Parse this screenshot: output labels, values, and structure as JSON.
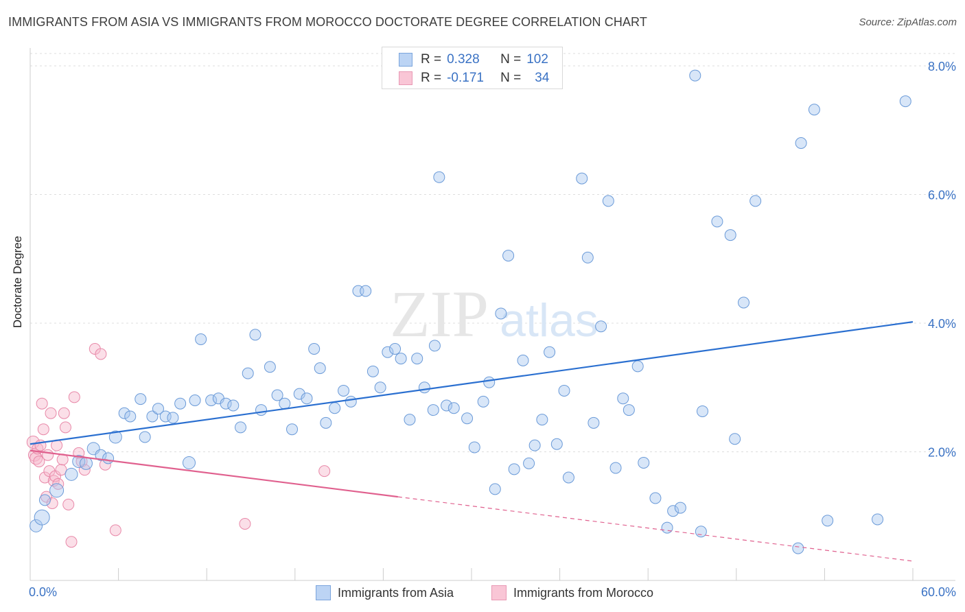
{
  "title": "IMMIGRANTS FROM ASIA VS IMMIGRANTS FROM MOROCCO DOCTORATE DEGREE CORRELATION CHART",
  "source": "Source: ZipAtlas.com",
  "watermark": {
    "zip": "ZIP",
    "atlas": "atlas"
  },
  "colors": {
    "asia_fill": "#a8c8f0",
    "asia_stroke": "#6a9ad8",
    "asia_line": "#2a6fd0",
    "morocco_fill": "#f6b8cc",
    "morocco_stroke": "#e888a8",
    "morocco_line": "#e0608e",
    "axis_label": "#3a72c4",
    "grid": "#dddddd"
  },
  "legend": {
    "asia": {
      "r_label": "R =",
      "r_value": "0.328",
      "n_label": "N =",
      "n_value": "102"
    },
    "morocco": {
      "r_label": "R =",
      "r_value": "-0.171",
      "n_label": "N =",
      "n_value": "34"
    }
  },
  "bottom_legend": {
    "asia": "Immigrants from Asia",
    "morocco": "Immigrants from Morocco"
  },
  "chart_data": {
    "type": "scatter",
    "title": "IMMIGRANTS FROM ASIA VS IMMIGRANTS FROM MOROCCO DOCTORATE DEGREE CORRELATION CHART",
    "xlabel": "",
    "ylabel": "Doctorate Degree",
    "xlim": [
      0,
      60
    ],
    "ylim": [
      0,
      8.3
    ],
    "x_tick_labels": [
      "0.0%",
      "60.0%"
    ],
    "y_ticks": [
      2,
      4,
      6,
      8
    ],
    "y_tick_labels": [
      "2.0%",
      "4.0%",
      "6.0%",
      "8.0%"
    ],
    "grid": "horizontal dashed",
    "legend_position": "top-center",
    "series": [
      {
        "name": "Immigrants from Asia",
        "regression": {
          "x": [
            0,
            60
          ],
          "y": [
            2.12,
            4.02
          ]
        },
        "points": [
          [
            0.4,
            0.85,
            9
          ],
          [
            0.8,
            0.98,
            11
          ],
          [
            1.0,
            1.25,
            8
          ],
          [
            1.8,
            1.4,
            10
          ],
          [
            2.8,
            1.65,
            9
          ],
          [
            3.3,
            1.85,
            9
          ],
          [
            3.8,
            1.82,
            9
          ],
          [
            4.3,
            2.05,
            9
          ],
          [
            4.8,
            1.95,
            8
          ],
          [
            5.3,
            1.9,
            8
          ],
          [
            5.8,
            2.23,
            9
          ],
          [
            6.4,
            2.6,
            8
          ],
          [
            6.8,
            2.55,
            8
          ],
          [
            7.5,
            2.82,
            8
          ],
          [
            7.8,
            2.23,
            8
          ],
          [
            8.3,
            2.55,
            8
          ],
          [
            8.7,
            2.67,
            8
          ],
          [
            9.2,
            2.55,
            8
          ],
          [
            9.7,
            2.53,
            8
          ],
          [
            10.2,
            2.75,
            8
          ],
          [
            10.8,
            1.83,
            9
          ],
          [
            11.2,
            2.8,
            8
          ],
          [
            11.6,
            3.75,
            8
          ],
          [
            12.3,
            2.8,
            8
          ],
          [
            12.8,
            2.83,
            8
          ],
          [
            13.3,
            2.75,
            8
          ],
          [
            13.8,
            2.72,
            8
          ],
          [
            14.3,
            2.38,
            8
          ],
          [
            14.8,
            3.22,
            8
          ],
          [
            15.3,
            3.82,
            8
          ],
          [
            15.7,
            2.65,
            8
          ],
          [
            16.3,
            3.32,
            8
          ],
          [
            16.8,
            2.88,
            8
          ],
          [
            17.3,
            2.75,
            8
          ],
          [
            17.8,
            2.35,
            8
          ],
          [
            18.3,
            2.9,
            8
          ],
          [
            18.8,
            2.83,
            8
          ],
          [
            19.3,
            3.6,
            8
          ],
          [
            19.7,
            3.3,
            8
          ],
          [
            20.1,
            2.45,
            8
          ],
          [
            20.7,
            2.68,
            8
          ],
          [
            21.3,
            2.95,
            8
          ],
          [
            21.8,
            2.78,
            8
          ],
          [
            22.3,
            4.5,
            8
          ],
          [
            22.8,
            4.5,
            8
          ],
          [
            23.3,
            3.25,
            8
          ],
          [
            23.8,
            3.0,
            8
          ],
          [
            24.3,
            3.55,
            8
          ],
          [
            24.8,
            3.6,
            8
          ],
          [
            25.2,
            3.45,
            8
          ],
          [
            25.8,
            2.5,
            8
          ],
          [
            26.3,
            3.45,
            8
          ],
          [
            26.8,
            3.0,
            8
          ],
          [
            27.4,
            2.65,
            8
          ],
          [
            27.8,
            6.27,
            8
          ],
          [
            28.3,
            2.72,
            8
          ],
          [
            28.8,
            2.68,
            8
          ],
          [
            29.7,
            2.52,
            8
          ],
          [
            30.2,
            2.07,
            8
          ],
          [
            30.8,
            2.78,
            8
          ],
          [
            31.2,
            3.08,
            8
          ],
          [
            31.6,
            1.42,
            8
          ],
          [
            32.0,
            4.15,
            8
          ],
          [
            32.5,
            5.05,
            8
          ],
          [
            32.9,
            1.73,
            8
          ],
          [
            33.5,
            3.42,
            8
          ],
          [
            33.9,
            1.82,
            8
          ],
          [
            34.3,
            2.1,
            8
          ],
          [
            34.8,
            2.5,
            8
          ],
          [
            35.3,
            3.55,
            8
          ],
          [
            35.8,
            2.12,
            8
          ],
          [
            36.3,
            2.95,
            8
          ],
          [
            36.6,
            1.6,
            8
          ],
          [
            37.5,
            6.25,
            8
          ],
          [
            37.9,
            5.02,
            8
          ],
          [
            38.3,
            2.45,
            8
          ],
          [
            38.8,
            3.95,
            8
          ],
          [
            39.3,
            5.9,
            8
          ],
          [
            39.8,
            1.75,
            8
          ],
          [
            40.3,
            2.83,
            8
          ],
          [
            40.7,
            2.65,
            8
          ],
          [
            41.3,
            3.33,
            8
          ],
          [
            41.7,
            1.83,
            8
          ],
          [
            42.5,
            1.28,
            8
          ],
          [
            43.3,
            0.82,
            8
          ],
          [
            43.7,
            1.08,
            8
          ],
          [
            44.2,
            1.13,
            8
          ],
          [
            45.2,
            7.85,
            8
          ],
          [
            45.7,
            2.63,
            8
          ],
          [
            45.6,
            0.76,
            8
          ],
          [
            46.7,
            5.58,
            8
          ],
          [
            47.6,
            5.37,
            8
          ],
          [
            47.9,
            2.2,
            8
          ],
          [
            48.5,
            4.32,
            8
          ],
          [
            49.3,
            5.9,
            8
          ],
          [
            52.2,
            0.5,
            8
          ],
          [
            52.4,
            6.8,
            8
          ],
          [
            53.3,
            7.32,
            8
          ],
          [
            54.2,
            0.93,
            8
          ],
          [
            57.6,
            0.95,
            8
          ],
          [
            59.5,
            7.45,
            8
          ],
          [
            27.5,
            3.65,
            8
          ]
        ]
      },
      {
        "name": "Immigrants from Morocco",
        "regression": {
          "x": [
            0,
            25
          ],
          "y": [
            2.02,
            1.3
          ]
        },
        "regression_dashed": {
          "x": [
            25,
            60
          ],
          "y": [
            1.3,
            0.3
          ]
        },
        "points": [
          [
            0.2,
            2.15,
            9
          ],
          [
            0.3,
            1.95,
            9
          ],
          [
            0.4,
            1.9,
            9
          ],
          [
            0.5,
            2.05,
            8
          ],
          [
            0.6,
            1.85,
            8
          ],
          [
            0.7,
            2.1,
            8
          ],
          [
            0.8,
            2.75,
            8
          ],
          [
            0.9,
            2.35,
            8
          ],
          [
            1.0,
            1.6,
            8
          ],
          [
            1.1,
            1.3,
            8
          ],
          [
            1.2,
            1.95,
            8
          ],
          [
            1.3,
            1.7,
            8
          ],
          [
            1.4,
            2.6,
            8
          ],
          [
            1.5,
            1.2,
            8
          ],
          [
            1.6,
            1.55,
            8
          ],
          [
            1.7,
            1.62,
            8
          ],
          [
            1.8,
            2.1,
            8
          ],
          [
            1.9,
            1.5,
            8
          ],
          [
            2.1,
            1.72,
            8
          ],
          [
            2.2,
            1.88,
            8
          ],
          [
            2.3,
            2.6,
            8
          ],
          [
            2.4,
            2.38,
            8
          ],
          [
            2.6,
            1.18,
            8
          ],
          [
            2.8,
            0.6,
            8
          ],
          [
            3.0,
            2.85,
            8
          ],
          [
            3.3,
            1.98,
            8
          ],
          [
            3.5,
            1.85,
            8
          ],
          [
            3.7,
            1.72,
            8
          ],
          [
            4.4,
            3.6,
            8
          ],
          [
            4.8,
            3.52,
            8
          ],
          [
            5.1,
            1.8,
            8
          ],
          [
            5.8,
            0.78,
            8
          ],
          [
            14.6,
            0.88,
            8
          ],
          [
            20.0,
            1.7,
            8
          ]
        ]
      }
    ]
  }
}
